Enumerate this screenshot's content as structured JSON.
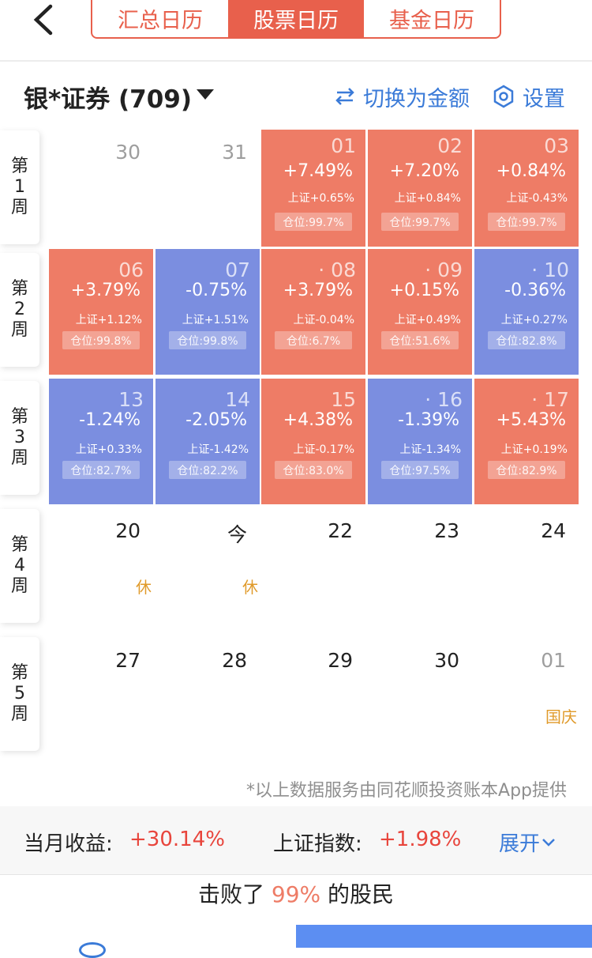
{
  "tabs": [
    "汇总日历",
    "股票日历",
    "基金日历"
  ],
  "account": {
    "name": "银*证券 (709)"
  },
  "actions": {
    "switch_label": "切换为金额",
    "settings_label": "设置"
  },
  "weeks": [
    {
      "label": "第\n1\n周"
    },
    {
      "label": "第\n2\n周"
    },
    {
      "label": "第\n3\n周"
    },
    {
      "label": "第\n4\n周"
    },
    {
      "label": "第\n5\n周"
    }
  ],
  "row1": [
    {
      "date": "30"
    },
    {
      "date": "31"
    },
    {
      "date": "01",
      "pct": "+7.49%",
      "sh": "上证+0.65%",
      "pos": "仓位:99.7%"
    },
    {
      "date": "02",
      "pct": "+7.20%",
      "sh": "上证+0.84%",
      "pos": "仓位:99.7%"
    },
    {
      "date": "03",
      "pct": "+0.84%",
      "sh": "上证-0.43%",
      "pos": "仓位:99.7%"
    }
  ],
  "row2": [
    {
      "date": "06",
      "pct": "+3.79%",
      "sh": "上证+1.12%",
      "pos": "仓位:99.8%"
    },
    {
      "date": "07",
      "pct": "-0.75%",
      "sh": "上证+1.51%",
      "pos": "仓位:99.8%"
    },
    {
      "date": "· 08",
      "pct": "+3.79%",
      "sh": "上证-0.04%",
      "pos": "仓位:6.7%"
    },
    {
      "date": "· 09",
      "pct": "+0.15%",
      "sh": "上证+0.49%",
      "pos": "仓位:51.6%"
    },
    {
      "date": "· 10",
      "pct": "-0.36%",
      "sh": "上证+0.27%",
      "pos": "仓位:82.8%"
    }
  ],
  "row3": [
    {
      "date": "13",
      "pct": "-1.24%",
      "sh": "上证+0.33%",
      "pos": "仓位:82.7%"
    },
    {
      "date": "14",
      "pct": "-2.05%",
      "sh": "上证-1.42%",
      "pos": "仓位:82.2%"
    },
    {
      "date": "15",
      "pct": "+4.38%",
      "sh": "上证-0.17%",
      "pos": "仓位:83.0%"
    },
    {
      "date": "· 16",
      "pct": "-1.39%",
      "sh": "上证-1.34%",
      "pos": "仓位:97.5%"
    },
    {
      "date": "· 17",
      "pct": "+5.43%",
      "sh": "上证+0.19%",
      "pos": "仓位:82.9%"
    }
  ],
  "row4": [
    {
      "date": "20",
      "note": "休"
    },
    {
      "date": "今",
      "note": "休"
    },
    {
      "date": "22"
    },
    {
      "date": "23"
    },
    {
      "date": "24"
    }
  ],
  "row5": [
    {
      "date": "27"
    },
    {
      "date": "28"
    },
    {
      "date": "29"
    },
    {
      "date": "30"
    },
    {
      "date": "01",
      "note": "国庆"
    }
  ],
  "disclaimer": "*以上数据服务由同花顺投资账本App提供",
  "summary": {
    "month_label": "当月收益:",
    "month_value": "+30.14%",
    "index_label": "上证指数:",
    "index_value": "+1.98%",
    "expand_label": "展开"
  },
  "beat": {
    "prefix": "击败了",
    "pct": "99%",
    "suffix": "的股民"
  },
  "colors": {
    "up": "#ee7c66",
    "down": "#7b8ee0",
    "accent": "#e8604c",
    "link": "#3b7bd8"
  }
}
